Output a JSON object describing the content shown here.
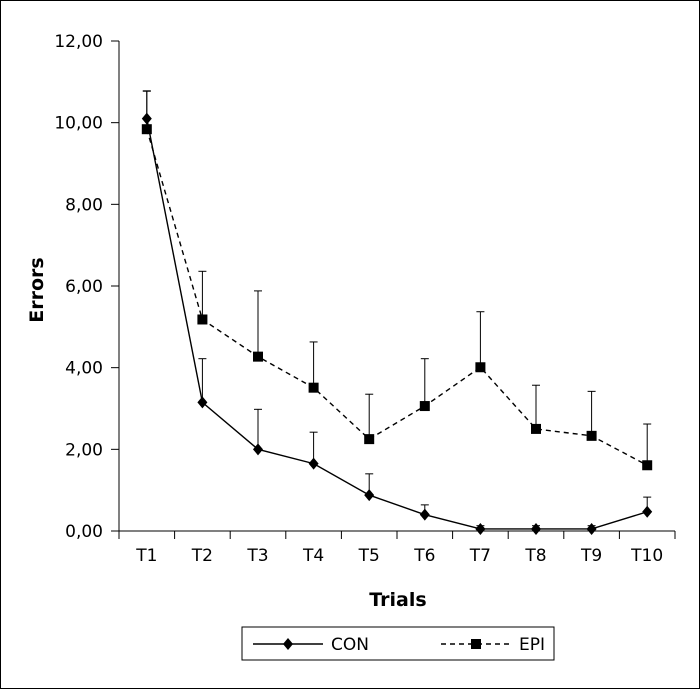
{
  "chart_data": {
    "type": "line",
    "title": "",
    "xlabel": "Trials",
    "ylabel": "Errors",
    "categories": [
      "T1",
      "T2",
      "T3",
      "T4",
      "T5",
      "T6",
      "T7",
      "T8",
      "T9",
      "T10"
    ],
    "ylim": [
      0,
      12
    ],
    "yticks": [
      "0,00",
      "2,00",
      "4,00",
      "6,00",
      "8,00",
      "10,00",
      "12,00"
    ],
    "grid": false,
    "legend_position": "bottom",
    "series": [
      {
        "name": "CON",
        "line_style": "solid",
        "marker": "diamond",
        "values": [
          10.1,
          3.15,
          2.0,
          1.65,
          0.88,
          0.4,
          0.05,
          0.05,
          0.05,
          0.47
        ],
        "error": [
          0.68,
          1.07,
          0.98,
          0.77,
          0.52,
          0.24,
          0.08,
          0.08,
          0.08,
          0.36
        ]
      },
      {
        "name": "EPI",
        "line_style": "dashed",
        "marker": "square",
        "values": [
          9.84,
          5.18,
          4.27,
          3.51,
          2.25,
          3.06,
          4.01,
          2.5,
          2.33,
          1.61
        ],
        "error": [
          0.93,
          1.18,
          1.61,
          1.12,
          1.1,
          1.16,
          1.36,
          1.07,
          1.09,
          1.01
        ]
      }
    ]
  }
}
